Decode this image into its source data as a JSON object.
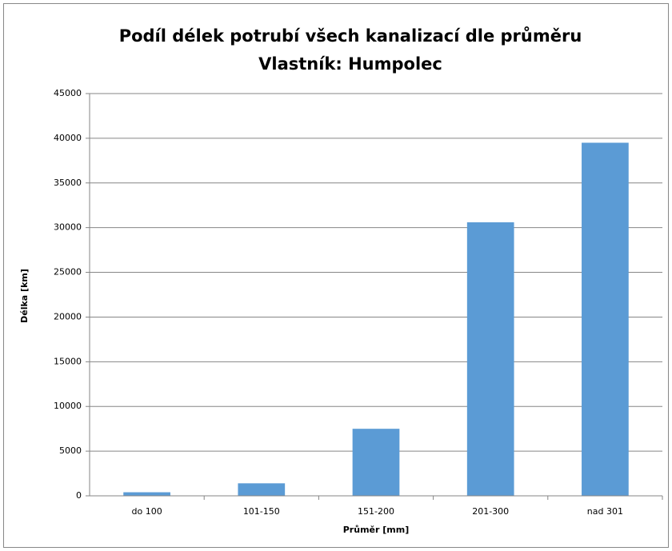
{
  "chart_data": {
    "type": "bar",
    "title": "Podíl délek potrubí všech kanalizací dle průměru",
    "subtitle": "Vlastník: Humpolec",
    "x_label": "Průměr [mm]",
    "y_label": "Délka [km]",
    "categories": [
      "do 100",
      "101-150",
      "151-200",
      "201-300",
      "nad 301"
    ],
    "values": [
      400,
      1400,
      7500,
      30600,
      39500
    ],
    "color": "#5b9bd5",
    "ylim": [
      0,
      45000
    ],
    "yticks": [
      0,
      5000,
      10000,
      15000,
      20000,
      25000,
      30000,
      35000,
      40000,
      45000
    ],
    "grid": true
  }
}
